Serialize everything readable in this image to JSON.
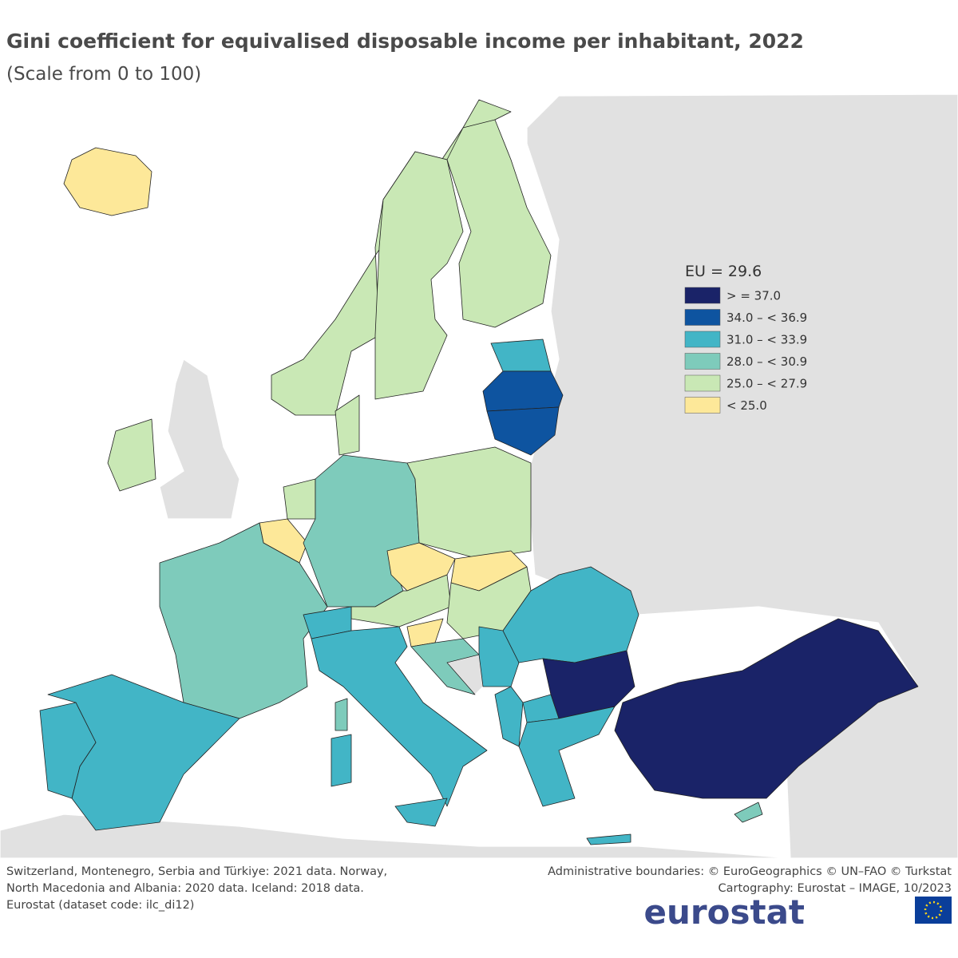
{
  "header": {
    "title": "Gini coefficient for equivalised disposable income per inhabitant, 2022",
    "subtitle": "(Scale from 0 to 100)"
  },
  "legend": {
    "title": "EU = 29.6",
    "items": [
      {
        "label": "> = 37.0",
        "color": "#1a2368"
      },
      {
        "label": "34.0 – < 36.9",
        "color": "#0e54a0"
      },
      {
        "label": "31.0 – < 33.9",
        "color": "#42b5c6"
      },
      {
        "label": "28.0 – < 30.9",
        "color": "#7ecbbb"
      },
      {
        "label": "25.0 – < 27.9",
        "color": "#c9e8b5"
      },
      {
        "label": "< 25.0",
        "color": "#fde899"
      }
    ]
  },
  "footer": {
    "notes_left": [
      "Switzerland, Montenegro, Serbia and Türkiye: 2021 data. Norway,",
      "North Macedonia and Albania: 2020 data. Iceland: 2018 data.",
      "Eurostat (dataset code: ilc_di12)"
    ],
    "notes_right": [
      "Administrative boundaries: © EuroGeographics © UN–FAO © Turkstat",
      "Cartography: Eurostat – IMAGE, 10/2023"
    ],
    "logo": "eurostat"
  }
}
